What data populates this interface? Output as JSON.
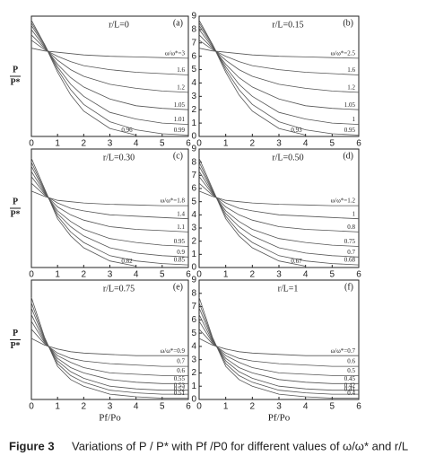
{
  "chart_data": [
    {
      "type": "line",
      "title": "r/L=0",
      "panel": "(a)",
      "y_label": {
        "num": "P",
        "den": "P*"
      },
      "x": [
        0,
        0.5,
        1,
        1.5,
        2,
        3,
        4,
        5,
        6
      ],
      "xlim": [
        0,
        6
      ],
      "ylim": [
        0,
        9
      ],
      "xticks": [
        0,
        1,
        2,
        3,
        4,
        5,
        6
      ],
      "series": [
        {
          "name": "ω/ω*=3",
          "color": "#555",
          "values": [
            6.6,
            6.4,
            6.3,
            6.2,
            6.1,
            6.0,
            5.95,
            5.9,
            5.85
          ]
        },
        {
          "name": "1.6",
          "color": "#555",
          "values": [
            7.2,
            6.5,
            6.0,
            5.6,
            5.3,
            5.0,
            4.8,
            4.7,
            4.6
          ]
        },
        {
          "name": "1.2",
          "color": "#555",
          "values": [
            7.6,
            6.6,
            5.7,
            5.0,
            4.5,
            3.9,
            3.6,
            3.4,
            3.3
          ]
        },
        {
          "name": "1.05",
          "color": "#555",
          "values": [
            8.0,
            6.7,
            5.4,
            4.4,
            3.7,
            2.8,
            2.3,
            2.1,
            2.0
          ]
        },
        {
          "name": "1.01",
          "color": "#555",
          "values": [
            8.3,
            6.8,
            5.2,
            3.9,
            3.0,
            1.8,
            1.3,
            1.0,
            0.9
          ]
        },
        {
          "name": "0.99",
          "color": "#555",
          "values": [
            8.5,
            6.9,
            5.0,
            3.5,
            2.4,
            1.1,
            0.5,
            0.2,
            0.1
          ]
        },
        {
          "name": "0.96",
          "color": "#555",
          "values": [
            8.7,
            6.9,
            4.8,
            3.1,
            1.9,
            0.6,
            0.1,
            null,
            null
          ]
        }
      ]
    },
    {
      "type": "line",
      "title": "r/L=0.15",
      "panel": "(b)",
      "x": [
        0,
        0.5,
        1,
        1.5,
        2,
        3,
        4,
        5,
        6
      ],
      "xlim": [
        0,
        6
      ],
      "ylim": [
        0,
        9
      ],
      "xticks": [
        0,
        1,
        2,
        3,
        4,
        5,
        6
      ],
      "yticks": [
        0,
        1,
        2,
        3,
        4,
        5,
        6,
        7,
        8,
        9
      ],
      "series": [
        {
          "name": "ω/ω*=2.5",
          "color": "#555",
          "values": [
            6.6,
            6.4,
            6.3,
            6.2,
            6.1,
            6.0,
            5.95,
            5.9,
            5.85
          ]
        },
        {
          "name": "1.6",
          "color": "#555",
          "values": [
            7.2,
            6.5,
            6.0,
            5.6,
            5.3,
            5.0,
            4.8,
            4.7,
            4.6
          ]
        },
        {
          "name": "1.2",
          "color": "#555",
          "values": [
            7.6,
            6.6,
            5.7,
            5.0,
            4.5,
            3.9,
            3.6,
            3.4,
            3.3
          ]
        },
        {
          "name": "1.05",
          "color": "#555",
          "values": [
            8.0,
            6.7,
            5.4,
            4.4,
            3.7,
            2.8,
            2.3,
            2.1,
            2.0
          ]
        },
        {
          "name": "1",
          "color": "#555",
          "values": [
            8.3,
            6.8,
            5.2,
            3.9,
            3.0,
            1.8,
            1.3,
            1.0,
            0.9
          ]
        },
        {
          "name": "0.95",
          "color": "#555",
          "values": [
            8.5,
            6.9,
            5.0,
            3.5,
            2.4,
            1.1,
            0.5,
            0.2,
            0.1
          ]
        },
        {
          "name": "0.93",
          "color": "#555",
          "values": [
            8.7,
            6.9,
            4.8,
            3.1,
            1.9,
            0.6,
            0.1,
            null,
            null
          ]
        }
      ]
    },
    {
      "type": "line",
      "title": "r/L=0.30",
      "panel": "(c)",
      "y_label": {
        "num": "P",
        "den": "P*"
      },
      "x": [
        0,
        0.5,
        1,
        1.5,
        2,
        3,
        4,
        5,
        6
      ],
      "xlim": [
        0,
        6
      ],
      "ylim": [
        0,
        9
      ],
      "xticks": [
        0,
        1,
        2,
        3,
        4,
        5,
        6
      ],
      "series": [
        {
          "name": "ω/ω*=1.8",
          "color": "#555",
          "values": [
            5.8,
            5.4,
            5.1,
            5.0,
            4.9,
            4.8,
            4.75,
            4.7,
            4.7
          ]
        },
        {
          "name": "1.4",
          "color": "#555",
          "values": [
            6.4,
            5.5,
            4.9,
            4.5,
            4.3,
            4.0,
            3.9,
            3.8,
            3.7
          ]
        },
        {
          "name": "1.1",
          "color": "#555",
          "values": [
            6.9,
            5.6,
            4.6,
            4.0,
            3.6,
            3.1,
            2.9,
            2.8,
            2.7
          ]
        },
        {
          "name": "0.95",
          "color": "#555",
          "values": [
            7.3,
            5.7,
            4.3,
            3.5,
            2.9,
            2.2,
            1.9,
            1.7,
            1.6
          ]
        },
        {
          "name": "0.9",
          "color": "#555",
          "values": [
            7.7,
            5.8,
            4.1,
            3.1,
            2.4,
            1.5,
            1.1,
            0.9,
            0.8
          ]
        },
        {
          "name": "0.85",
          "color": "#555",
          "values": [
            8.0,
            5.9,
            3.9,
            2.7,
            1.9,
            0.9,
            0.5,
            0.3,
            0.2
          ]
        },
        {
          "name": "0.82",
          "color": "#555",
          "values": [
            8.3,
            6.0,
            3.7,
            2.4,
            1.5,
            0.5,
            0.1,
            null,
            null
          ]
        }
      ]
    },
    {
      "type": "line",
      "title": "r/L=0.50",
      "panel": "(d)",
      "x": [
        0,
        0.5,
        1,
        1.5,
        2,
        3,
        4,
        5,
        6
      ],
      "xlim": [
        0,
        6
      ],
      "ylim": [
        0,
        9
      ],
      "xticks": [
        0,
        1,
        2,
        3,
        4,
        5,
        6
      ],
      "yticks": [
        0,
        1,
        2,
        3,
        4,
        5,
        6,
        7,
        8,
        9
      ],
      "series": [
        {
          "name": "ω/ω*=1.2",
          "color": "#555",
          "values": [
            5.8,
            5.4,
            5.1,
            5.0,
            4.9,
            4.8,
            4.75,
            4.7,
            4.7
          ]
        },
        {
          "name": "1",
          "color": "#555",
          "values": [
            6.4,
            5.5,
            4.9,
            4.5,
            4.3,
            4.0,
            3.9,
            3.8,
            3.7
          ]
        },
        {
          "name": "0.8",
          "color": "#555",
          "values": [
            6.9,
            5.6,
            4.6,
            4.0,
            3.6,
            3.1,
            2.9,
            2.8,
            2.7
          ]
        },
        {
          "name": "0.75",
          "color": "#555",
          "values": [
            7.3,
            5.7,
            4.3,
            3.5,
            2.9,
            2.2,
            1.9,
            1.7,
            1.6
          ]
        },
        {
          "name": "0.7",
          "color": "#555",
          "values": [
            7.7,
            5.8,
            4.1,
            3.1,
            2.4,
            1.5,
            1.1,
            0.9,
            0.8
          ]
        },
        {
          "name": "0.68",
          "color": "#555",
          "values": [
            8.0,
            5.9,
            3.9,
            2.7,
            1.9,
            0.9,
            0.5,
            0.3,
            0.2
          ]
        },
        {
          "name": "0.67",
          "color": "#555",
          "values": [
            8.3,
            6.0,
            3.7,
            2.4,
            1.5,
            0.5,
            0.1,
            null,
            null
          ]
        }
      ]
    },
    {
      "type": "line",
      "title": "r/L=0.75",
      "panel": "(e)",
      "y_label": {
        "num": "P",
        "den": "P*"
      },
      "x_label": "Pf/Po",
      "x": [
        0,
        0.5,
        1,
        1.5,
        2,
        3,
        4,
        5,
        6
      ],
      "xlim": [
        0,
        6
      ],
      "ylim": [
        0,
        9
      ],
      "xticks": [
        0,
        1,
        2,
        3,
        4,
        5,
        6
      ],
      "series": [
        {
          "name": "ω/ω*=0.9",
          "color": "#555",
          "values": [
            4.6,
            4.1,
            3.8,
            3.6,
            3.5,
            3.4,
            3.3,
            3.3,
            3.3
          ]
        },
        {
          "name": "0.7",
          "color": "#555",
          "values": [
            5.3,
            4.2,
            3.5,
            3.1,
            2.9,
            2.7,
            2.6,
            2.5,
            2.5
          ]
        },
        {
          "name": "0.6",
          "color": "#555",
          "values": [
            5.9,
            4.3,
            3.3,
            2.8,
            2.4,
            2.0,
            1.9,
            1.8,
            1.8
          ]
        },
        {
          "name": "0.55",
          "color": "#555",
          "values": [
            6.4,
            4.4,
            3.1,
            2.4,
            2.0,
            1.5,
            1.3,
            1.2,
            1.2
          ]
        },
        {
          "name": "0.53",
          "color": "#555",
          "values": [
            6.9,
            4.5,
            2.9,
            2.1,
            1.6,
            1.0,
            0.8,
            0.7,
            0.7
          ]
        },
        {
          "name": "0.52",
          "color": "#555",
          "values": [
            7.3,
            4.6,
            2.7,
            1.8,
            1.3,
            0.7,
            0.5,
            0.4,
            0.4
          ]
        },
        {
          "name": "0.51",
          "color": "#555",
          "values": [
            7.7,
            4.7,
            2.5,
            1.5,
            1.0,
            0.4,
            0.2,
            0.1,
            0.1
          ]
        }
      ]
    },
    {
      "type": "line",
      "title": "r/L=1",
      "panel": "(f)",
      "x_label": "Pf/Po",
      "x": [
        0,
        0.5,
        1,
        1.5,
        2,
        3,
        4,
        5,
        6
      ],
      "xlim": [
        0,
        6
      ],
      "ylim": [
        0,
        9
      ],
      "xticks": [
        0,
        1,
        2,
        3,
        4,
        5,
        6
      ],
      "yticks": [
        0,
        1,
        2,
        3,
        4,
        5,
        6,
        7,
        8,
        9
      ],
      "series": [
        {
          "name": "ω/ω*=0.7",
          "color": "#555",
          "values": [
            4.6,
            4.1,
            3.8,
            3.6,
            3.5,
            3.4,
            3.3,
            3.3,
            3.3
          ]
        },
        {
          "name": "0.6",
          "color": "#555",
          "values": [
            5.3,
            4.2,
            3.5,
            3.1,
            2.9,
            2.7,
            2.6,
            2.5,
            2.5
          ]
        },
        {
          "name": "0.5",
          "color": "#555",
          "values": [
            5.9,
            4.3,
            3.3,
            2.8,
            2.4,
            2.0,
            1.9,
            1.8,
            1.8
          ]
        },
        {
          "name": "0.45",
          "color": "#555",
          "values": [
            6.4,
            4.4,
            3.1,
            2.4,
            2.0,
            1.5,
            1.3,
            1.2,
            1.2
          ]
        },
        {
          "name": "0.42",
          "color": "#555",
          "values": [
            6.9,
            4.5,
            2.9,
            2.1,
            1.6,
            1.0,
            0.8,
            0.7,
            0.7
          ]
        },
        {
          "name": "0.41",
          "color": "#555",
          "values": [
            7.3,
            4.6,
            2.7,
            1.8,
            1.3,
            0.7,
            0.5,
            0.4,
            0.4
          ]
        },
        {
          "name": "0.4",
          "color": "#555",
          "values": [
            7.7,
            4.7,
            2.5,
            1.5,
            1.0,
            0.4,
            0.2,
            0.1,
            0.1
          ]
        }
      ]
    }
  ],
  "caption": {
    "label": "Figure 3",
    "text": "Variations of P / P* with Pf /P0 for different values of  ω/ω* and r/L"
  }
}
